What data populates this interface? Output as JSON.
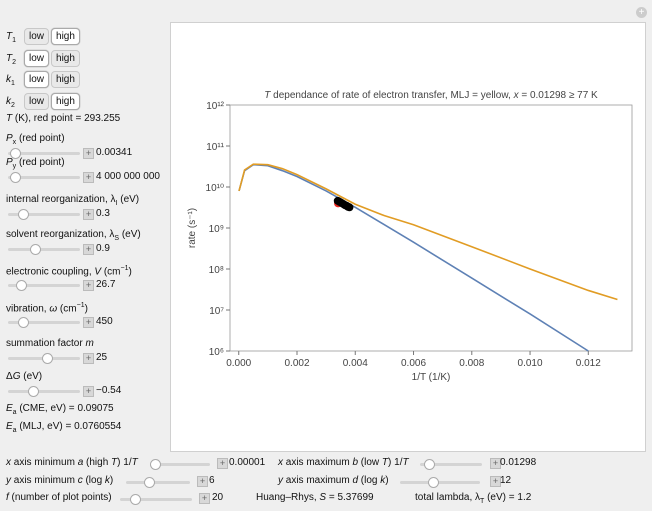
{
  "left_panel": {
    "setters": [
      {
        "label": [
          {
            "i": "T"
          },
          {
            "sub": "1"
          }
        ],
        "options": [
          "low",
          "high"
        ],
        "selected": 1
      },
      {
        "label": [
          {
            "i": "T"
          },
          {
            "sub": "2"
          }
        ],
        "options": [
          "low",
          "high"
        ],
        "selected": 0
      },
      {
        "label": [
          {
            "i": "k"
          },
          {
            "sub": "1"
          }
        ],
        "options": [
          "low",
          "high"
        ],
        "selected": 0
      },
      {
        "label": [
          {
            "i": "k"
          },
          {
            "sub": "2"
          }
        ],
        "options": [
          "low",
          "high"
        ],
        "selected": 1
      }
    ],
    "temperature": {
      "label": [
        {
          "i": "T"
        },
        {
          "t": " (K), red point =  "
        }
      ],
      "value": "293.255"
    },
    "sliders": [
      {
        "label": [
          {
            "i": "P"
          },
          {
            "sub": "x"
          },
          {
            "t": " (red point)"
          }
        ],
        "value": "0.00341"
      },
      {
        "label": [
          {
            "i": "P"
          },
          {
            "sub": "y"
          },
          {
            "t": " (red point)"
          }
        ],
        "value": "4 000 000 000"
      },
      {
        "label": [
          {
            "t": "internal reorganization, λ"
          },
          {
            "sub": "I"
          },
          {
            "t": " (eV)"
          }
        ],
        "value": "0.3"
      },
      {
        "label": [
          {
            "t": "solvent reorganization, λ"
          },
          {
            "sub": "S"
          },
          {
            "t": " (eV)"
          }
        ],
        "value": "0.9"
      },
      {
        "label": [
          {
            "t": "electronic coupling, "
          },
          {
            "i": "V"
          },
          {
            "t": " (cm"
          },
          {
            "sup": "−1"
          },
          {
            "t": ")"
          }
        ],
        "value": "26.7"
      },
      {
        "label": [
          {
            "t": "vibration, "
          },
          {
            "i": "ω"
          },
          {
            "t": " (cm"
          },
          {
            "sup": "−1"
          },
          {
            "t": ")"
          }
        ],
        "value": "450"
      },
      {
        "label": [
          {
            "t": "summation factor "
          },
          {
            "i": "m"
          }
        ],
        "value": "25"
      },
      {
        "label": [
          {
            "t": "Δ"
          },
          {
            "i": "G"
          },
          {
            "t": " (eV)"
          }
        ],
        "value": "−0.54"
      }
    ],
    "results": [
      {
        "label": [
          {
            "i": "E"
          },
          {
            "sub": "a"
          },
          {
            "t": " (CME, eV) =  "
          }
        ],
        "value": "0.09075"
      },
      {
        "label": [
          {
            "i": "E"
          },
          {
            "sub": "a"
          },
          {
            "t": " (MLJ, eV) =  "
          }
        ],
        "value": "0.0760554"
      }
    ]
  },
  "bottom_panel": {
    "controls": [
      {
        "label": [
          {
            "i": "x"
          },
          {
            "t": " axis minimum  "
          },
          {
            "i": "a"
          },
          {
            "t": " (high "
          },
          {
            "i": "T"
          },
          {
            "t": ") 1/"
          },
          {
            "i": "T"
          }
        ],
        "value": "0.00001"
      },
      {
        "label": [
          {
            "i": "x"
          },
          {
            "t": " axis maximum  "
          },
          {
            "i": "b"
          },
          {
            "t": " (low "
          },
          {
            "i": "T"
          },
          {
            "t": ") 1/"
          },
          {
            "i": "T"
          }
        ],
        "value": "0.01298"
      },
      {
        "label": [
          {
            "i": "y"
          },
          {
            "t": " axis minimum  "
          },
          {
            "i": "c"
          },
          {
            "t": " (log "
          },
          {
            "i": "k"
          },
          {
            "t": ")"
          }
        ],
        "value": "6"
      },
      {
        "label": [
          {
            "i": "y"
          },
          {
            "t": " axis maximum  "
          },
          {
            "i": "d"
          },
          {
            "t": " (log "
          },
          {
            "i": "k"
          },
          {
            "t": ")"
          }
        ],
        "value": "12"
      },
      {
        "label": [
          {
            "i": "f"
          },
          {
            "t": " (number of plot points)"
          }
        ],
        "value": "20"
      }
    ],
    "results": [
      {
        "label": [
          {
            "t": "Huang–Rhys, "
          },
          {
            "i": "S"
          },
          {
            "t": " = 5.37699"
          }
        ]
      },
      {
        "label": [
          {
            "t": "total lambda, λ"
          },
          {
            "sub": "T"
          },
          {
            "t": " (eV) = 1.2"
          }
        ]
      }
    ]
  },
  "chart_data": {
    "type": "line",
    "title": [
      {
        "i": "T"
      },
      {
        "t": " dependance of rate of electron transfer, MLJ = yellow, "
      },
      {
        "i": "x"
      },
      {
        "t": " = 0.01298 ≥ 77 K"
      }
    ],
    "x_label": "1/T (1/K)",
    "y_label": "rate (s⁻¹)",
    "log_y": true,
    "xlim": [
      -0.0003,
      0.0135
    ],
    "ylim": [
      1000000,
      1000000000000
    ],
    "xticks": [
      {
        "value": 0,
        "label": "0.000"
      },
      {
        "value": 0.002,
        "label": "0.002"
      },
      {
        "value": 0.004,
        "label": "0.004"
      },
      {
        "value": 0.006,
        "label": "0.006"
      },
      {
        "value": 0.008,
        "label": "0.008"
      },
      {
        "value": 0.01,
        "label": "0.010"
      },
      {
        "value": 0.012,
        "label": "0.012"
      }
    ],
    "yticks": [
      {
        "value": 1000000,
        "label": "10⁶"
      },
      {
        "value": 10000000,
        "label": "10⁷"
      },
      {
        "value": 100000000,
        "label": "10⁸"
      },
      {
        "value": 1000000000,
        "label": "10⁹"
      },
      {
        "value": 10000000000,
        "label": "10¹⁰"
      },
      {
        "value": 100000000000,
        "label": "10¹¹"
      },
      {
        "value": 1000000000000,
        "label": "10¹²"
      }
    ],
    "series": [
      {
        "color": "#5e81b5",
        "x": [
          1e-05,
          0.0002,
          0.0005,
          0.001,
          0.0015,
          0.002,
          0.003,
          0.004,
          0.006,
          0.008,
          0.01,
          0.012
        ],
        "values": [
          8000000000,
          25000000000,
          35000000000,
          33000000000,
          25000000000,
          18000000000,
          8000000000,
          3200000000,
          450000000,
          60000000,
          8000000,
          1000000
        ]
      },
      {
        "color": "#e19c24",
        "x": [
          1e-05,
          0.0002,
          0.0005,
          0.001,
          0.0015,
          0.002,
          0.003,
          0.004,
          0.005,
          0.006,
          0.008,
          0.01,
          0.012,
          0.013
        ],
        "values": [
          8000000000,
          26000000000,
          36000000000,
          35000000000,
          28000000000,
          20000000000,
          9000000000,
          3800000000,
          2000000000,
          1200000000,
          350000000,
          100000000,
          30000000,
          18000000
        ]
      }
    ],
    "markers": {
      "color": "#000000",
      "x": [
        0.0034,
        0.00345,
        0.0035,
        0.00355,
        0.0036,
        0.00365,
        0.0037,
        0.00375,
        0.0038
      ],
      "values": [
        4600000000,
        4400000000,
        4200000000,
        4000000000,
        3800000000,
        3600000000,
        3500000000,
        3300000000,
        3200000000
      ]
    },
    "red_point": {
      "color": "#e8251e",
      "x": 0.00341,
      "y": 4000000000
    }
  }
}
